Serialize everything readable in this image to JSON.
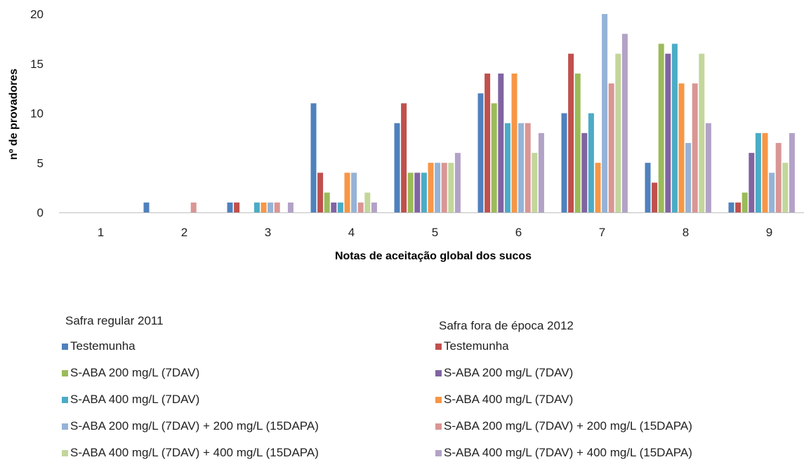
{
  "chart_data": {
    "type": "bar",
    "xlabel": "Notas de aceitação global dos sucos",
    "ylabel": "nº de provadores",
    "ylim": [
      0,
      20
    ],
    "yticks": [
      "0",
      "5",
      "10",
      "15",
      "20"
    ],
    "categories": [
      "1",
      "2",
      "3",
      "4",
      "5",
      "6",
      "7",
      "8",
      "9"
    ],
    "grid": false,
    "legend_position": "bottom",
    "groups": [
      {
        "title": "Safra regular 2011",
        "series": [
          {
            "name": "Testemunha",
            "color": "#4F81BD",
            "values": [
              0,
              1,
              1,
              11,
              9,
              12,
              10,
              5,
              1
            ]
          },
          {
            "name": "S-ABA 200 mg/L (7DAV)",
            "color": "#9BBB59",
            "values": [
              0,
              0,
              0,
              2,
              4,
              11,
              14,
              17,
              2
            ]
          },
          {
            "name": "S-ABA 400 mg/L (7DAV)",
            "color": "#4BACC6",
            "values": [
              0,
              0,
              1,
              1,
              4,
              9,
              10,
              17,
              8
            ]
          },
          {
            "name": "S-ABA 200 mg/L (7DAV) + 200 mg/L (15DAPA)",
            "color": "#95B3D7",
            "values": [
              0,
              0,
              1,
              4,
              5,
              9,
              20,
              7,
              4
            ]
          },
          {
            "name": "S-ABA 400 mg/L (7DAV) + 400 mg/L (15DAPA)",
            "color": "#C3D69B",
            "values": [
              0,
              0,
              0,
              2,
              5,
              6,
              16,
              16,
              5
            ]
          }
        ]
      },
      {
        "title": "Safra fora de época 2012",
        "series": [
          {
            "name": "Testemunha",
            "color": "#C0504D",
            "values": [
              0,
              0,
              1,
              4,
              11,
              14,
              16,
              3,
              1
            ]
          },
          {
            "name": "S-ABA 200 mg/L (7DAV)",
            "color": "#8064A2",
            "values": [
              0,
              0,
              0,
              1,
              4,
              14,
              8,
              16,
              6
            ]
          },
          {
            "name": "S-ABA 400 mg/L (7DAV)",
            "color": "#F79646",
            "values": [
              0,
              0,
              1,
              4,
              5,
              14,
              5,
              13,
              8
            ]
          },
          {
            "name": "S-ABA 200 mg/L (7DAV) + 200 mg/L (15DAPA)",
            "color": "#D99694",
            "values": [
              0,
              1,
              1,
              1,
              5,
              9,
              13,
              13,
              7
            ]
          },
          {
            "name": "S-ABA 400 mg/L (7DAV) + 400 mg/L (15DAPA)",
            "color": "#B3A2C7",
            "values": [
              0,
              0,
              1,
              1,
              6,
              8,
              18,
              9,
              8
            ]
          }
        ]
      }
    ]
  }
}
